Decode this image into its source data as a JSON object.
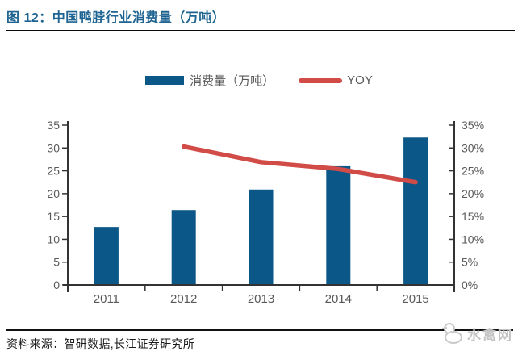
{
  "figure": {
    "title": "图 12：中国鸭脖行业消费量（万吨）",
    "source": "资料来源：智研数据,长江证券研究所",
    "watermark": "水禽网"
  },
  "colors": {
    "title": "#1E6391",
    "bar": "#0A5788",
    "line": "#D14B47",
    "axis": "#333333",
    "tick_text": "#595959",
    "footer_text": "#1A1A1A",
    "watermark": "#C4C4C4"
  },
  "chart_data": {
    "type": "bar+line",
    "title": "中国鸭脖行业消费量（万吨）",
    "categories": [
      "2011",
      "2012",
      "2013",
      "2014",
      "2015"
    ],
    "series": [
      {
        "name": "消费量（万吨）",
        "type": "bar",
        "axis": "left",
        "color": "#0A5788",
        "values": [
          12.7,
          16.4,
          20.9,
          26.0,
          32.3
        ]
      },
      {
        "name": "YOY",
        "type": "line",
        "axis": "right",
        "color": "#D14B47",
        "unit": "%",
        "values": [
          null,
          30.3,
          26.9,
          25.4,
          22.5
        ]
      }
    ],
    "left_axis": {
      "min": 0,
      "max": 35,
      "step": 5,
      "ticks": [
        "0",
        "5",
        "10",
        "15",
        "20",
        "25",
        "30",
        "35"
      ]
    },
    "right_axis": {
      "min": 0,
      "max": 35,
      "step": 5,
      "ticks": [
        "0%",
        "5%",
        "10%",
        "15%",
        "20%",
        "25%",
        "30%",
        "35%"
      ]
    },
    "grid": false,
    "legend_position": "top"
  }
}
